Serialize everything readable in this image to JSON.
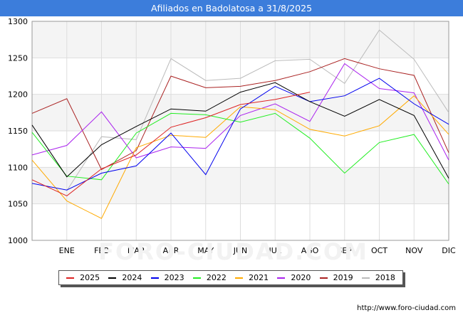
{
  "header": {
    "title": "Afiliados en Badolatosa a 31/8/2025"
  },
  "footer": {
    "source": "http://www.foro-ciudad.com"
  },
  "watermark": "FORO-CIUDAD.COM",
  "chart_data": {
    "type": "line",
    "categories": [
      "",
      "ENE",
      "FEB",
      "MAR",
      "ABR",
      "MAY",
      "JUN",
      "JUL",
      "AGO",
      "SEP",
      "OCT",
      "NOV",
      "DIC"
    ],
    "ylim": [
      1000,
      1300
    ],
    "yticks": [
      1000,
      1050,
      1100,
      1150,
      1200,
      1250,
      1300
    ],
    "grid": true,
    "legend_position": "bottom",
    "series": [
      {
        "name": "2025",
        "color": "#dd2222",
        "values": [
          1083,
          1061,
          1098,
          1117,
          1155,
          1168,
          1186,
          1193,
          1203,
          null,
          null,
          null,
          null
        ]
      },
      {
        "name": "2024",
        "color": "#000000",
        "values": [
          1158,
          1087,
          1131,
          1156,
          1180,
          1177,
          1203,
          1216,
          1190,
          1170,
          1193,
          1171,
          1085
        ]
      },
      {
        "name": "2023",
        "color": "#0000ee",
        "values": [
          1078,
          1069,
          1092,
          1102,
          1147,
          1090,
          1180,
          1211,
          1190,
          1198,
          1222,
          1187,
          1159
        ]
      },
      {
        "name": "2022",
        "color": "#22ee22",
        "values": [
          1148,
          1088,
          1083,
          1147,
          1174,
          1172,
          1162,
          1174,
          1140,
          1092,
          1134,
          1145,
          1077
        ]
      },
      {
        "name": "2021",
        "color": "#ffaa00",
        "values": [
          1110,
          1054,
          1030,
          1127,
          1144,
          1141,
          1183,
          1179,
          1152,
          1143,
          1157,
          1198,
          1145
        ]
      },
      {
        "name": "2020",
        "color": "#aa22ee",
        "values": [
          1117,
          1130,
          1176,
          1113,
          1128,
          1126,
          1171,
          1187,
          1163,
          1242,
          1208,
          1202,
          1110
        ]
      },
      {
        "name": "2019",
        "color": "#aa2222",
        "values": [
          1174,
          1194,
          1097,
          1123,
          1225,
          1209,
          1211,
          1219,
          1231,
          1249,
          1235,
          1226,
          1120
        ]
      },
      {
        "name": "2018",
        "color": "#bbbbbb",
        "values": [
          null,
          1068,
          1142,
          1138,
          1249,
          1219,
          1222,
          1246,
          1248,
          1215,
          1288,
          1248,
          1175
        ]
      }
    ]
  }
}
